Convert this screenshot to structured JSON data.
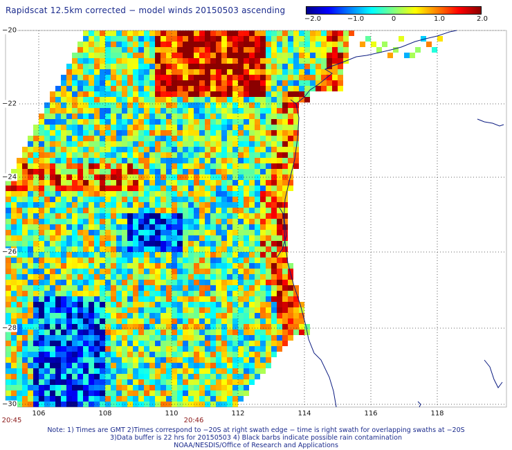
{
  "title": "Rapidscat 12.5km corrected − model winds 20150503 ascending",
  "colorbar": {
    "labels": [
      "−2.0",
      "−1.0",
      "0",
      "1.0",
      "2.0"
    ],
    "colors": [
      "#00008b",
      "#0000ff",
      "#0080ff",
      "#00ffff",
      "#80ff80",
      "#ffff00",
      "#ff8000",
      "#ff0000",
      "#8b0000"
    ]
  },
  "map": {
    "lon_range": [
      105,
      120
    ],
    "lat_range": [
      -30,
      -20
    ],
    "lat_labels": [
      "−20",
      "−22",
      "−24",
      "−26",
      "−28",
      "−30"
    ],
    "lon_labels": [
      "106",
      "108",
      "110",
      "112",
      "114",
      "116",
      "118"
    ],
    "grid": true,
    "coast_color": "#0a1a80"
  },
  "time_labels": [
    "20:45",
    "20:46"
  ],
  "notes": [
    "Note: 1) Times are GMT 2)Times correspond to −20S at right swath edge − time is right swath for overlapping swaths at −20S",
    "3)Data buffer is 22 hrs for 20150503 4) Black barbs indicate possible rain contamination",
    "NOAA/NESDIS/Office of Research and Applications"
  ]
}
